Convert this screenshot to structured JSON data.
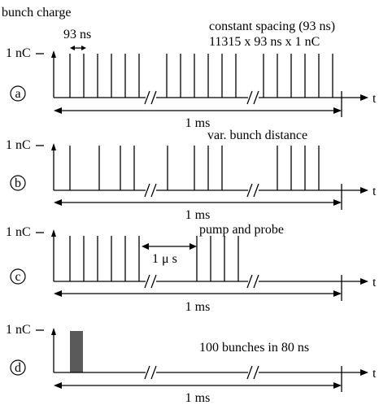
{
  "header": {
    "y_quantity_label": "bunch charge",
    "spacing_label": "93 ns"
  },
  "panels": [
    {
      "id": "a",
      "charge_label": "1 nC",
      "axis_label": "t",
      "span_label": "1 ms",
      "annotations": [
        "constant spacing (93 ns)",
        "11315 x 93 ns x 1 nC"
      ]
    },
    {
      "id": "b",
      "charge_label": "1 nC",
      "axis_label": "t",
      "span_label": "1 ms",
      "annotations": [
        "var. bunch distance"
      ]
    },
    {
      "id": "c",
      "charge_label": "1 nC",
      "axis_label": "t",
      "span_label": "1 ms",
      "annotations": [
        "pump and probe"
      ],
      "gap_label": "1 μ s"
    },
    {
      "id": "d",
      "charge_label": "1 nC",
      "axis_label": "t",
      "span_label": "1 ms",
      "annotations": [
        "100 bunches in 80 ns"
      ]
    }
  ]
}
